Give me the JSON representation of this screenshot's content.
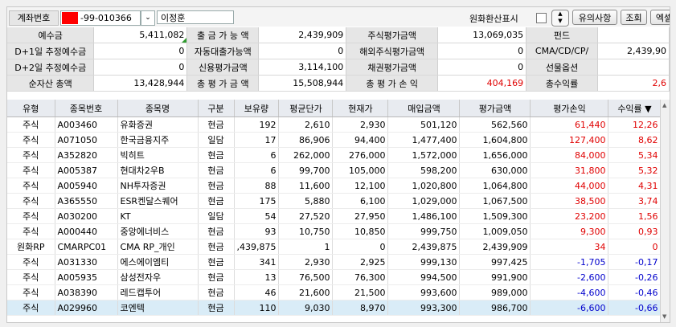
{
  "account": {
    "label": "계좌번호",
    "number": "-99-010366",
    "name": "이정훈"
  },
  "toolbar": {
    "fx_label": "원화환산표시",
    "btn_notice": "유의사항",
    "btn_query": "조회",
    "btn_excel": "엑셀"
  },
  "summary": [
    [
      "예수금",
      "5,411,082",
      "출 금 가 능 액",
      "2,439,909",
      "주식평가금액",
      "13,069,035",
      "펀드",
      ""
    ],
    [
      "D+1일 추정예수금",
      "0",
      "자동대출가능액",
      "0",
      "해외주식평가금액",
      "0",
      "CMA/CD/CP/",
      "2,439,90"
    ],
    [
      "D+2일 추정예수금",
      "0",
      "신용평가금액",
      "3,114,100",
      "채권평가금액",
      "0",
      "선물옵션",
      ""
    ],
    [
      "순자산 총액",
      "13,428,944",
      "총 평 가 금 액",
      "15,508,944",
      "총 평 가 손 익",
      "404,169",
      "총수익률",
      "2,6"
    ]
  ],
  "grid_headers": [
    "유형",
    "종목번호",
    "종목명",
    "구분",
    "보유량",
    "평균단가",
    "현재가",
    "매입금액",
    "평가금액",
    "평가손익",
    "수익률 ▼"
  ],
  "rows": [
    [
      "주식",
      "A003460",
      "유화증권",
      "현금",
      "192",
      "2,610",
      "2,930",
      "501,120",
      "562,560",
      "61,440",
      "12,26"
    ],
    [
      "주식",
      "A071050",
      "한국금융지주",
      "일담",
      "17",
      "86,906",
      "94,400",
      "1,477,400",
      "1,604,800",
      "127,400",
      "8,62"
    ],
    [
      "주식",
      "A352820",
      "빅히트",
      "현금",
      "6",
      "262,000",
      "276,000",
      "1,572,000",
      "1,656,000",
      "84,000",
      "5,34"
    ],
    [
      "주식",
      "A005387",
      "현대차2우B",
      "현금",
      "6",
      "99,700",
      "105,000",
      "598,200",
      "630,000",
      "31,800",
      "5,32"
    ],
    [
      "주식",
      "A005940",
      "NH투자증권",
      "현금",
      "88",
      "11,600",
      "12,100",
      "1,020,800",
      "1,064,800",
      "44,000",
      "4,31"
    ],
    [
      "주식",
      "A365550",
      "ESR켄달스퀘어",
      "현금",
      "175",
      "5,880",
      "6,100",
      "1,029,000",
      "1,067,500",
      "38,500",
      "3,74"
    ],
    [
      "주식",
      "A030200",
      "KT",
      "일담",
      "54",
      "27,520",
      "27,950",
      "1,486,100",
      "1,509,300",
      "23,200",
      "1,56"
    ],
    [
      "주식",
      "A000440",
      "중앙에너비스",
      "현금",
      "93",
      "10,750",
      "10,850",
      "999,750",
      "1,009,050",
      "9,300",
      "0,93"
    ],
    [
      "원화RP",
      "CMARPC01",
      "CMA RP_개인",
      "현금",
      ",439,875",
      "1",
      "0",
      "2,439,875",
      "2,439,909",
      "34",
      "0"
    ],
    [
      "주식",
      "A031330",
      "에스에이엠티",
      "현금",
      "341",
      "2,930",
      "2,925",
      "999,130",
      "997,425",
      "-1,705",
      "-0,17"
    ],
    [
      "주식",
      "A005935",
      "삼성전자우",
      "현금",
      "13",
      "76,500",
      "76,300",
      "994,500",
      "991,900",
      "-2,600",
      "-0,26"
    ],
    [
      "주식",
      "A038390",
      "레드캡투어",
      "현금",
      "46",
      "21,600",
      "21,500",
      "993,600",
      "989,000",
      "-4,600",
      "-0,46"
    ],
    [
      "주식",
      "A029960",
      "코엔텍",
      "현금",
      "110",
      "9,030",
      "8,970",
      "993,300",
      "986,700",
      "-6,600",
      "-0,66"
    ]
  ],
  "colors": {
    "positive": "#e00000",
    "negative": "#0000cc",
    "header_bg": "#e8ebf0",
    "selected_row": "#d9ecf7"
  }
}
